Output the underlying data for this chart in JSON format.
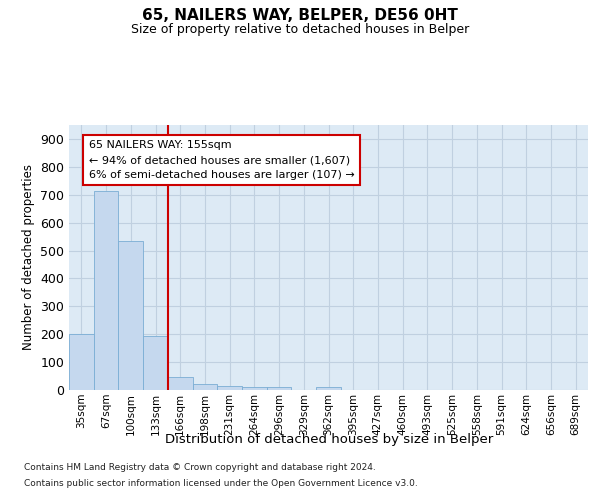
{
  "title_line1": "65, NAILERS WAY, BELPER, DE56 0HT",
  "title_line2": "Size of property relative to detached houses in Belper",
  "xlabel": "Distribution of detached houses by size in Belper",
  "ylabel": "Number of detached properties",
  "bin_labels": [
    "35sqm",
    "67sqm",
    "100sqm",
    "133sqm",
    "166sqm",
    "198sqm",
    "231sqm",
    "264sqm",
    "296sqm",
    "329sqm",
    "362sqm",
    "395sqm",
    "427sqm",
    "460sqm",
    "493sqm",
    "525sqm",
    "558sqm",
    "591sqm",
    "624sqm",
    "656sqm",
    "689sqm"
  ],
  "bar_values": [
    200,
    715,
    535,
    195,
    45,
    20,
    15,
    10,
    10,
    0,
    10,
    0,
    0,
    0,
    0,
    0,
    0,
    0,
    0,
    0,
    0
  ],
  "bar_color": "#c5d8ee",
  "bar_edge_color": "#7aadd4",
  "property_line_idx": 4,
  "property_line_color": "#cc0000",
  "annotation_line1": "65 NAILERS WAY: 155sqm",
  "annotation_line2": "← 94% of detached houses are smaller (1,607)",
  "annotation_line3": "6% of semi-detached houses are larger (107) →",
  "annotation_box_edgecolor": "#cc0000",
  "annotation_bg": "#ffffff",
  "grid_color": "#c0d0e0",
  "plot_bg_color": "#ddeaf5",
  "ylim": [
    0,
    950
  ],
  "yticks": [
    0,
    100,
    200,
    300,
    400,
    500,
    600,
    700,
    800,
    900
  ],
  "footnote_line1": "Contains HM Land Registry data © Crown copyright and database right 2024.",
  "footnote_line2": "Contains public sector information licensed under the Open Government Licence v3.0."
}
